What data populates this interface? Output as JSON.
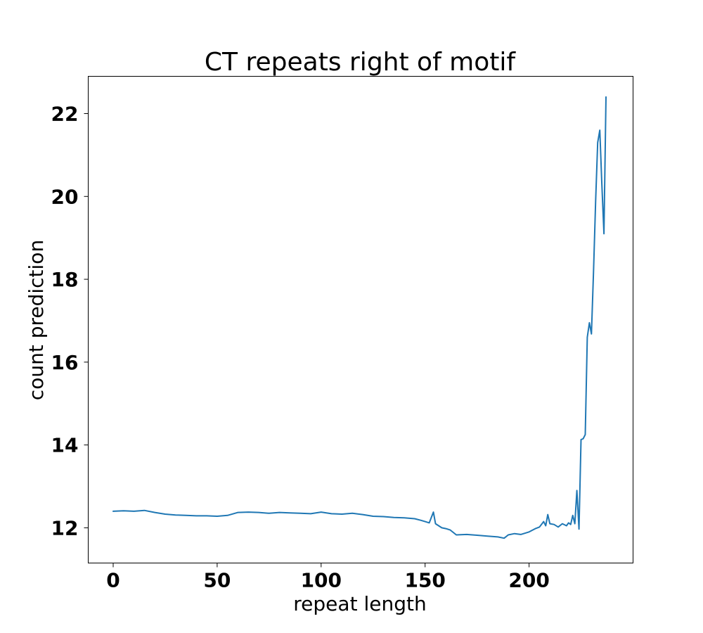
{
  "chart_data": {
    "type": "line",
    "title": "CT repeats right of motif",
    "xlabel": "repeat length",
    "ylabel": "count prediction",
    "xlim": [
      -12,
      250
    ],
    "ylim": [
      11.15,
      22.9
    ],
    "xticks": [
      0,
      50,
      100,
      150,
      200
    ],
    "yticks": [
      12,
      14,
      16,
      18,
      20,
      22
    ],
    "grid": false,
    "colors": {
      "line": "#1f77b4"
    },
    "series": [
      {
        "x": [
          0,
          5,
          10,
          15,
          20,
          25,
          30,
          35,
          40,
          45,
          50,
          55,
          60,
          65,
          70,
          75,
          80,
          85,
          90,
          95,
          100,
          105,
          110,
          115,
          120,
          125,
          130,
          135,
          140,
          145,
          148,
          150,
          152,
          154,
          155,
          158,
          160,
          162,
          165,
          170,
          175,
          180,
          185,
          188,
          190,
          193,
          196,
          200,
          203,
          205,
          207,
          208,
          209,
          210,
          212,
          214,
          216,
          218,
          219,
          220,
          221,
          222,
          223,
          224,
          225,
          226,
          227,
          228,
          229,
          230,
          231,
          232,
          233,
          234,
          235,
          236,
          237
        ],
        "y": [
          12.4,
          12.41,
          12.4,
          12.42,
          12.37,
          12.33,
          12.31,
          12.3,
          12.29,
          12.29,
          12.28,
          12.3,
          12.37,
          12.38,
          12.37,
          12.35,
          12.37,
          12.36,
          12.35,
          12.34,
          12.38,
          12.34,
          12.33,
          12.35,
          12.32,
          12.28,
          12.27,
          12.25,
          12.24,
          12.22,
          12.18,
          12.15,
          12.12,
          12.38,
          12.1,
          12.0,
          11.98,
          11.95,
          11.83,
          11.84,
          11.82,
          11.8,
          11.78,
          11.75,
          11.83,
          11.86,
          11.84,
          11.9,
          11.98,
          12.02,
          12.15,
          12.05,
          12.32,
          12.1,
          12.08,
          12.02,
          12.1,
          12.05,
          12.12,
          12.08,
          12.3,
          12.1,
          12.9,
          11.97,
          14.13,
          14.15,
          14.25,
          16.6,
          16.95,
          16.68,
          18.2,
          19.9,
          21.3,
          21.6,
          20.3,
          19.1,
          22.4
        ]
      }
    ]
  }
}
